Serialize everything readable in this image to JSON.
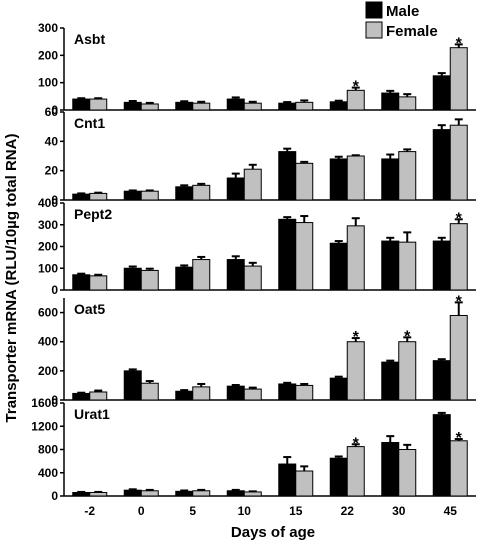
{
  "legend": [
    {
      "label": "Male",
      "color": "#000000"
    },
    {
      "label": "Female",
      "color": "#c0c0c0"
    }
  ],
  "xlabel": "Days of age",
  "ylabel": "Transporter mRNA (RLU/10µg total RNA)",
  "chart_data": [
    {
      "type": "bar",
      "title": "Asbt",
      "categories": [
        "-2",
        "0",
        "5",
        "10",
        "15",
        "22",
        "30",
        "45"
      ],
      "ylim": [
        0,
        300
      ],
      "yticks": [
        0,
        100,
        200,
        300
      ],
      "series": [
        {
          "name": "Male",
          "values": [
            40,
            28,
            28,
            40,
            25,
            30,
            62,
            125
          ],
          "errors": [
            3,
            5,
            4,
            6,
            4,
            4,
            8,
            10
          ]
        },
        {
          "name": "Female",
          "values": [
            40,
            22,
            25,
            25,
            28,
            72,
            48,
            228
          ],
          "errors": [
            3,
            4,
            5,
            5,
            7,
            10,
            10,
            12
          ]
        }
      ],
      "significant": [
        false,
        false,
        false,
        false,
        false,
        true,
        false,
        true
      ]
    },
    {
      "type": "bar",
      "title": "Cnt1",
      "categories": [
        "-2",
        "0",
        "5",
        "10",
        "15",
        "22",
        "30",
        "45"
      ],
      "ylim": [
        0,
        60
      ],
      "yticks": [
        0,
        20,
        40,
        60
      ],
      "series": [
        {
          "name": "Male",
          "values": [
            4,
            6,
            9,
            15,
            33,
            28,
            28,
            48
          ],
          "errors": [
            0.5,
            0.5,
            1,
            3,
            2,
            1.5,
            3,
            3
          ]
        },
        {
          "name": "Female",
          "values": [
            4.5,
            6,
            10,
            21,
            25,
            30,
            33,
            51
          ],
          "errors": [
            0.5,
            0.5,
            1,
            3,
            1,
            0.5,
            1.5,
            4
          ]
        }
      ],
      "significant": [
        false,
        false,
        false,
        false,
        false,
        false,
        false,
        false
      ]
    },
    {
      "type": "bar",
      "title": "Pept2",
      "categories": [
        "-2",
        "0",
        "5",
        "10",
        "15",
        "22",
        "30",
        "45"
      ],
      "ylim": [
        0,
        400
      ],
      "yticks": [
        0,
        100,
        200,
        300,
        400
      ],
      "series": [
        {
          "name": "Male",
          "values": [
            70,
            100,
            105,
            140,
            325,
            215,
            225,
            225
          ],
          "errors": [
            5,
            8,
            8,
            15,
            10,
            10,
            15,
            15
          ]
        },
        {
          "name": "Female",
          "values": [
            65,
            90,
            140,
            110,
            310,
            295,
            220,
            305
          ],
          "errors": [
            5,
            8,
            12,
            15,
            30,
            35,
            45,
            20
          ]
        }
      ],
      "significant": [
        false,
        false,
        false,
        false,
        false,
        false,
        false,
        true
      ]
    },
    {
      "type": "bar",
      "title": "Oat5",
      "categories": [
        "-2",
        "0",
        "5",
        "10",
        "15",
        "22",
        "30",
        "45"
      ],
      "ylim": [
        0,
        700
      ],
      "yticks": [
        0,
        200,
        400,
        600
      ],
      "series": [
        {
          "name": "Male",
          "values": [
            45,
            200,
            60,
            95,
            110,
            150,
            260,
            270
          ],
          "errors": [
            5,
            10,
            8,
            8,
            8,
            10,
            10,
            10
          ]
        },
        {
          "name": "Female",
          "values": [
            55,
            115,
            90,
            75,
            100,
            400,
            400,
            580
          ],
          "errors": [
            10,
            15,
            20,
            10,
            10,
            25,
            30,
            90
          ]
        }
      ],
      "significant": [
        false,
        false,
        false,
        false,
        false,
        true,
        true,
        true
      ]
    },
    {
      "type": "bar",
      "title": "Urat1",
      "categories": [
        "-2",
        "0",
        "5",
        "10",
        "15",
        "22",
        "30",
        "45"
      ],
      "ylim": [
        0,
        1600
      ],
      "yticks": [
        0,
        400,
        800,
        1200,
        1600
      ],
      "series": [
        {
          "name": "Male",
          "values": [
            60,
            100,
            80,
            90,
            550,
            650,
            920,
            1400
          ],
          "errors": [
            10,
            15,
            15,
            15,
            120,
            30,
            110,
            30
          ]
        },
        {
          "name": "Female",
          "values": [
            60,
            90,
            90,
            70,
            430,
            850,
            800,
            950
          ],
          "errors": [
            10,
            15,
            15,
            10,
            80,
            40,
            80,
            30
          ]
        }
      ],
      "significant": [
        false,
        false,
        false,
        false,
        false,
        true,
        false,
        true
      ]
    }
  ]
}
